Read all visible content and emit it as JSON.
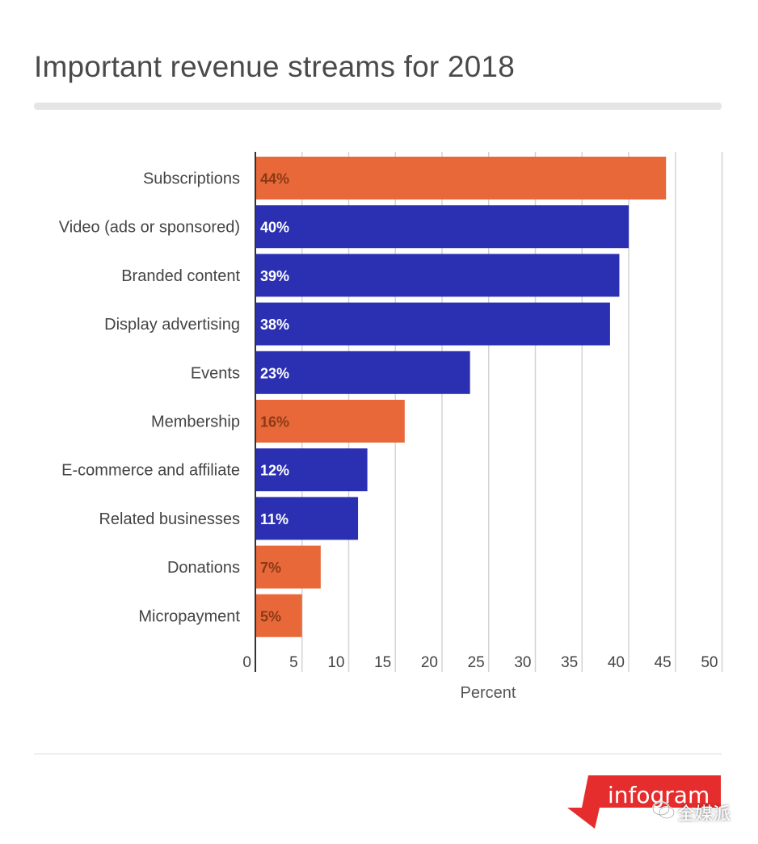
{
  "title": "Important revenue streams for 2018",
  "colors": {
    "orange": "#e8683a",
    "blue": "#2b2fb2",
    "grid": "#d4d4d4",
    "axis": "#333333"
  },
  "chart_data": {
    "type": "bar",
    "orientation": "horizontal",
    "title": "Important revenue streams for 2018",
    "xlabel": "Percent",
    "ylabel": "",
    "xlim": [
      0,
      50
    ],
    "x_ticks": [
      0,
      5,
      10,
      15,
      20,
      25,
      30,
      35,
      40,
      45,
      50
    ],
    "grid": true,
    "categories": [
      "Subscriptions",
      "Video (ads or sponsored)",
      "Branded content",
      "Display advertising",
      "Events",
      "Membership",
      "E-commerce and affiliate",
      "Related businesses",
      "Donations",
      "Micropayment"
    ],
    "values": [
      44,
      40,
      39,
      38,
      23,
      16,
      12,
      11,
      7,
      5
    ],
    "data_labels": [
      "44%",
      "40%",
      "39%",
      "38%",
      "23%",
      "16%",
      "12%",
      "11%",
      "7%",
      "5%"
    ],
    "bar_colors": [
      "orange",
      "blue",
      "blue",
      "blue",
      "blue",
      "orange",
      "blue",
      "blue",
      "orange",
      "orange"
    ]
  },
  "logo": {
    "text": "infogram"
  },
  "watermark": {
    "text": "全媒派"
  }
}
